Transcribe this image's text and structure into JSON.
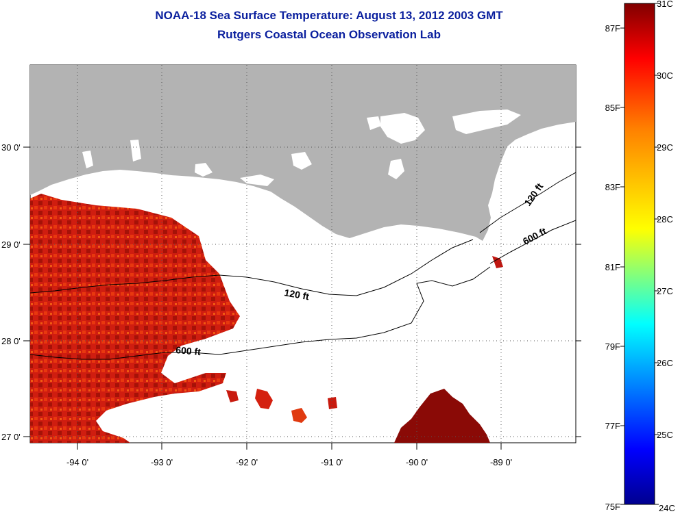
{
  "title": "NOAA-18 Sea Surface Temperature:  August 13, 2012 2003 GMT",
  "subtitle": "Rutgers Coastal Ocean Observation Lab",
  "map": {
    "lon_labels": [
      "-94 0'",
      "-93 0'",
      "-92 0'",
      "-91 0'",
      "-90 0'",
      "-89 0'"
    ],
    "lat_labels": [
      "30 0'",
      "29 0'",
      "28 0'",
      "27 0'"
    ],
    "contours": [
      {
        "label": "120 ft"
      },
      {
        "label": "600 ft"
      },
      {
        "label": "120 ft"
      },
      {
        "label": "600 ft"
      }
    ],
    "land_color": "#b3b3b3",
    "grid": "dotted"
  },
  "colorbar": {
    "fahrenheit_labels": [
      "87F",
      "85F",
      "83F",
      "81F",
      "79F",
      "77F",
      "75F"
    ],
    "celsius_labels": [
      "31C",
      "30C",
      "29C",
      "28C",
      "27C",
      "26C",
      "25C",
      "24C"
    ],
    "range_c": [
      24,
      31
    ],
    "colormap": "jet"
  }
}
